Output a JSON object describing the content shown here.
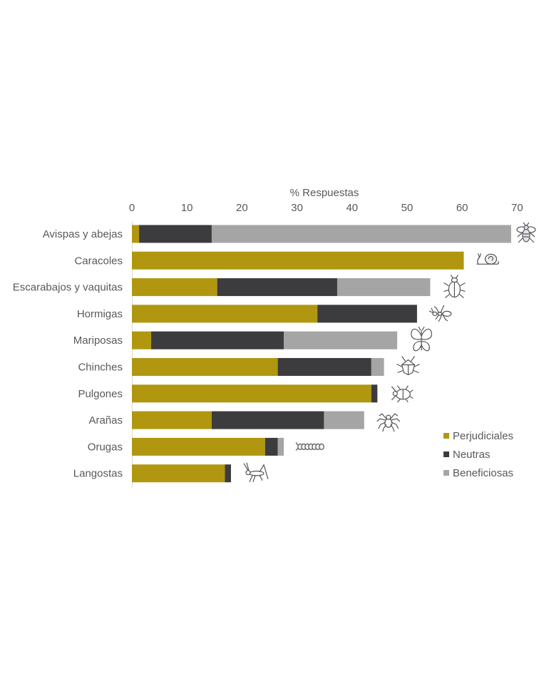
{
  "chart_data": {
    "type": "bar",
    "orientation": "horizontal",
    "stacked": true,
    "xlabel": "% Respuestas",
    "xaxis_position": "top",
    "xlim": [
      0,
      70
    ],
    "xticks": [
      0,
      10,
      20,
      30,
      40,
      50,
      60,
      70
    ],
    "grid": false,
    "legend_position": "bottom-right",
    "categories": [
      "Avispas y abejas",
      "Caracoles",
      "Escarabajos y vaquitas",
      "Hormigas",
      "Mariposas",
      "Chinches",
      "Pulgones",
      "Arañas",
      "Orugas",
      "Langostas"
    ],
    "series": [
      {
        "name": "Perjudiciales",
        "color": "#b0970f",
        "values": [
          1.3,
          60.3,
          15.5,
          33.7,
          3.5,
          26.5,
          43.5,
          14.5,
          24.2,
          16.9
        ]
      },
      {
        "name": "Neutras",
        "color": "#3c3c3e",
        "values": [
          13.2,
          0,
          21.8,
          18.1,
          24.1,
          17.0,
          1.1,
          20.4,
          2.3,
          1.1
        ]
      },
      {
        "name": "Beneficiosas",
        "color": "#a5a5a5",
        "values": [
          54.4,
          0,
          16.9,
          0,
          20.6,
          2.3,
          0,
          7.3,
          1.1,
          0
        ]
      }
    ],
    "icons": [
      "bee-icon",
      "snail-icon",
      "beetle-icon",
      "ant-icon",
      "butterfly-icon",
      "stink-bug-icon",
      "aphid-icon",
      "spider-icon",
      "caterpillar-icon",
      "grasshopper-icon"
    ]
  }
}
